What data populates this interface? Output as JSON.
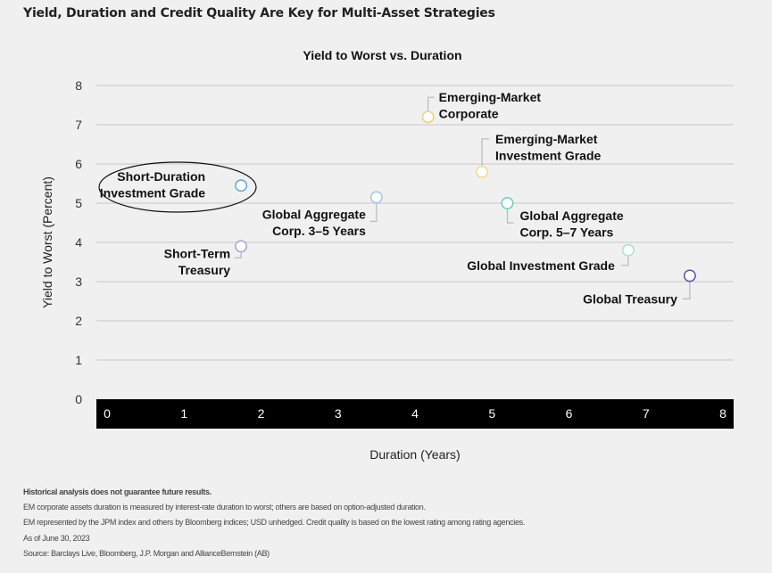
{
  "header": {
    "title": "Yield, Duration and Credit Quality Are Key for Multi-Asset Strategies"
  },
  "chart_data": {
    "type": "scatter",
    "title": "Yield to Worst vs. Duration",
    "xlabel": "Duration (Years)",
    "ylabel": "Yield to Worst (Percent)",
    "xlim": [
      0,
      8
    ],
    "ylim": [
      0,
      8
    ],
    "xticks": [
      "0",
      "1",
      "2",
      "3",
      "4",
      "5",
      "6",
      "7",
      "8"
    ],
    "yticks": [
      "0",
      "1",
      "2",
      "3",
      "4",
      "5",
      "6",
      "7",
      "8"
    ],
    "grid": "horizontal",
    "points": [
      {
        "name": "Short-Duration Investment Grade",
        "lines": [
          "Short-Duration",
          "Investment Grade"
        ],
        "x": 1.74,
        "y": 5.45,
        "color": "#5aa7e0",
        "highlight": true
      },
      {
        "name": "Short-Term Treasury",
        "lines": [
          "Short-Term",
          "Treasury"
        ],
        "x": 1.74,
        "y": 3.9,
        "color": "#a79fd8"
      },
      {
        "name": "Global Aggregate Corp. 3–5 Years",
        "lines": [
          "Global Aggregate",
          "Corp. 3–5 Years"
        ],
        "x": 3.5,
        "y": 5.15,
        "color": "#9cc9ee"
      },
      {
        "name": "Emerging-Market Corporate",
        "lines": [
          "Emerging-Market",
          "Corporate"
        ],
        "x": 4.17,
        "y": 7.2,
        "color": "#f2cf6e"
      },
      {
        "name": "Emerging-Market Investment Grade",
        "lines": [
          "Emerging-Market",
          "Investment Grade"
        ],
        "x": 4.87,
        "y": 5.8,
        "color": "#f5d98a"
      },
      {
        "name": "Global Aggregate Corp. 5–7 Years",
        "lines": [
          "Global Aggregate",
          "Corp. 5–7 Years"
        ],
        "x": 5.2,
        "y": 5.0,
        "color": "#5ed3bf"
      },
      {
        "name": "Global Investment Grade",
        "lines": [
          "Global Investment Grade"
        ],
        "x": 6.77,
        "y": 3.8,
        "color": "#9fe3d5"
      },
      {
        "name": "Global Treasury",
        "lines": [
          "Global Treasury"
        ],
        "x": 7.57,
        "y": 3.15,
        "color": "#5c4fb0"
      }
    ]
  },
  "footer": {
    "disclaimer": "Historical analysis does not guarantee future results.",
    "notes": [
      "EM corporate assets duration is measured by interest-rate duration to worst; others are based on option-adjusted duration.",
      "EM represented by the JPM index and others by Bloomberg indices; USD unhedged. Credit quality is based on the lowest rating among rating agencies.",
      "As of June 30, 2023",
      "Source: Barclays Live, Bloomberg, J.P. Morgan and AllianceBernstein (AB)"
    ]
  }
}
